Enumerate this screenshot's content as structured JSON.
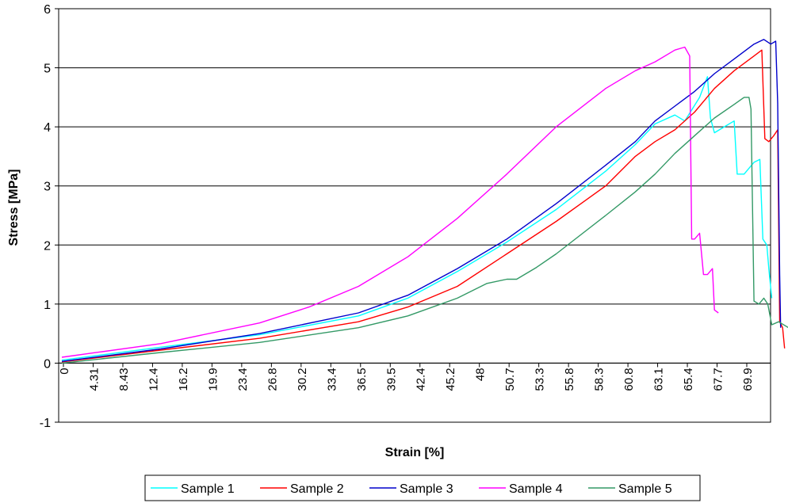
{
  "chart_data": {
    "type": "line",
    "xlabel": "Strain [%]",
    "ylabel": "Stress  [MPa]",
    "ylim": [
      -1,
      6
    ],
    "yticks": [
      -1,
      0,
      1,
      2,
      3,
      4,
      5,
      6
    ],
    "xlim": [
      0,
      72
    ],
    "xtick_labels": [
      "0",
      "4.31",
      "8.43",
      "12.4",
      "16.2",
      "19.9",
      "23.4",
      "26.8",
      "30.2",
      "33.4",
      "36.5",
      "39.5",
      "42.4",
      "45.2",
      "48",
      "50.7",
      "53.3",
      "55.8",
      "58.3",
      "60.8",
      "63.1",
      "65.4",
      "67.7",
      "69.9"
    ],
    "grid": "horizontal",
    "legend_position": "bottom",
    "series": [
      {
        "name": "Sample 1",
        "color": "#00ffff",
        "points": [
          [
            0,
            0.05
          ],
          [
            10,
            0.27
          ],
          [
            20,
            0.48
          ],
          [
            30,
            0.8
          ],
          [
            35,
            1.1
          ],
          [
            40,
            1.55
          ],
          [
            45,
            2.05
          ],
          [
            50,
            2.6
          ],
          [
            55,
            3.25
          ],
          [
            58,
            3.7
          ],
          [
            60,
            4.05
          ],
          [
            62,
            4.2
          ],
          [
            63,
            4.1
          ],
          [
            64.5,
            4.5
          ],
          [
            65.3,
            4.85
          ],
          [
            65.6,
            4.15
          ],
          [
            66,
            3.9
          ],
          [
            67,
            4.0
          ],
          [
            68,
            4.1
          ],
          [
            68.3,
            3.2
          ],
          [
            69,
            3.2
          ],
          [
            70,
            3.4
          ],
          [
            70.6,
            3.45
          ],
          [
            70.9,
            2.1
          ],
          [
            71.3,
            2.0
          ],
          [
            71.5,
            1.6
          ],
          [
            71.8,
            1.1
          ]
        ]
      },
      {
        "name": "Sample 2",
        "color": "#ff0000",
        "points": [
          [
            0,
            0.02
          ],
          [
            10,
            0.22
          ],
          [
            20,
            0.42
          ],
          [
            30,
            0.7
          ],
          [
            35,
            0.95
          ],
          [
            40,
            1.3
          ],
          [
            45,
            1.85
          ],
          [
            50,
            2.4
          ],
          [
            55,
            3.0
          ],
          [
            58,
            3.5
          ],
          [
            60,
            3.75
          ],
          [
            62,
            3.95
          ],
          [
            64,
            4.25
          ],
          [
            66,
            4.65
          ],
          [
            68,
            4.95
          ],
          [
            70,
            5.2
          ],
          [
            70.8,
            5.3
          ],
          [
            71.1,
            3.8
          ],
          [
            71.5,
            3.75
          ],
          [
            72,
            3.85
          ],
          [
            72.4,
            3.95
          ],
          [
            72.6,
            0.7
          ],
          [
            72.9,
            0.6
          ],
          [
            73.1,
            0.25
          ]
        ]
      },
      {
        "name": "Sample 3",
        "color": "#0000cc",
        "points": [
          [
            0,
            0.03
          ],
          [
            10,
            0.24
          ],
          [
            20,
            0.5
          ],
          [
            30,
            0.85
          ],
          [
            35,
            1.15
          ],
          [
            40,
            1.6
          ],
          [
            45,
            2.1
          ],
          [
            50,
            2.7
          ],
          [
            55,
            3.35
          ],
          [
            58,
            3.75
          ],
          [
            60,
            4.1
          ],
          [
            62,
            4.35
          ],
          [
            64,
            4.6
          ],
          [
            66,
            4.9
          ],
          [
            68,
            5.15
          ],
          [
            70,
            5.4
          ],
          [
            71,
            5.48
          ],
          [
            71.7,
            5.4
          ],
          [
            72.2,
            5.45
          ],
          [
            72.4,
            4.4
          ],
          [
            72.6,
            1.5
          ],
          [
            72.7,
            0.6
          ]
        ]
      },
      {
        "name": "Sample 4",
        "color": "#ff00ff",
        "points": [
          [
            0,
            0.1
          ],
          [
            10,
            0.33
          ],
          [
            20,
            0.68
          ],
          [
            25,
            0.95
          ],
          [
            30,
            1.3
          ],
          [
            35,
            1.8
          ],
          [
            40,
            2.45
          ],
          [
            45,
            3.2
          ],
          [
            50,
            4.0
          ],
          [
            55,
            4.65
          ],
          [
            58,
            4.95
          ],
          [
            60,
            5.1
          ],
          [
            62,
            5.3
          ],
          [
            63,
            5.35
          ],
          [
            63.5,
            5.2
          ],
          [
            63.7,
            2.1
          ],
          [
            64,
            2.1
          ],
          [
            64.5,
            2.2
          ],
          [
            64.9,
            1.5
          ],
          [
            65.3,
            1.5
          ],
          [
            65.8,
            1.6
          ],
          [
            66,
            0.9
          ],
          [
            66.4,
            0.85
          ]
        ]
      },
      {
        "name": "Sample 5",
        "color": "#339966",
        "points": [
          [
            0,
            0.0
          ],
          [
            10,
            0.18
          ],
          [
            20,
            0.35
          ],
          [
            30,
            0.6
          ],
          [
            35,
            0.8
          ],
          [
            40,
            1.1
          ],
          [
            43,
            1.35
          ],
          [
            45,
            1.42
          ],
          [
            46,
            1.42
          ],
          [
            48,
            1.62
          ],
          [
            50,
            1.85
          ],
          [
            55,
            2.5
          ],
          [
            58,
            2.9
          ],
          [
            60,
            3.2
          ],
          [
            62,
            3.55
          ],
          [
            64,
            3.85
          ],
          [
            66,
            4.15
          ],
          [
            68,
            4.38
          ],
          [
            69,
            4.5
          ],
          [
            69.5,
            4.5
          ],
          [
            69.7,
            4.3
          ],
          [
            70,
            1.05
          ],
          [
            70.5,
            1.0
          ],
          [
            71,
            1.1
          ],
          [
            71.4,
            1.0
          ],
          [
            71.8,
            0.65
          ],
          [
            72.5,
            0.7
          ],
          [
            73.5,
            0.6
          ],
          [
            74,
            0.5
          ]
        ]
      }
    ]
  }
}
